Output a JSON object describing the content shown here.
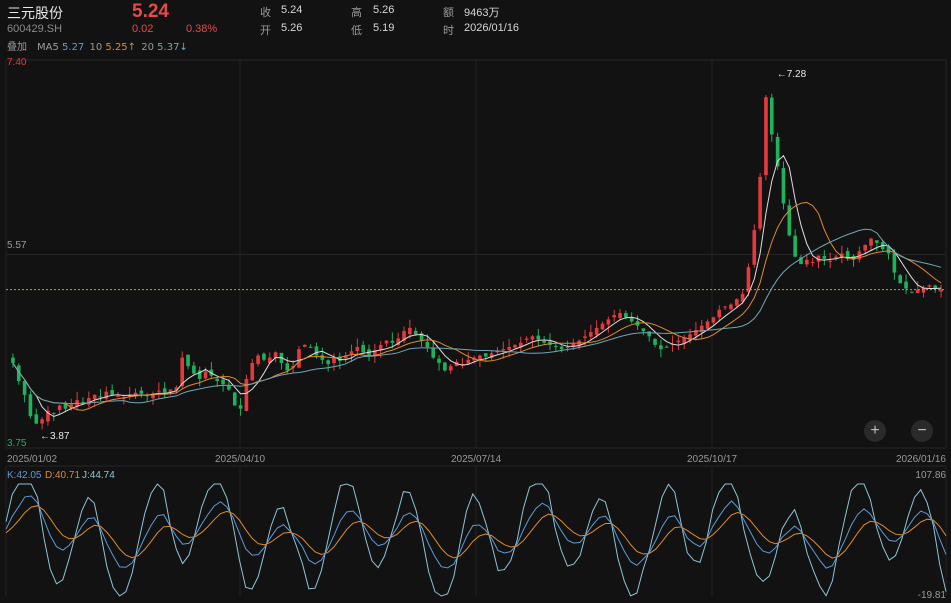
{
  "header": {
    "name": "三元股份",
    "code": "600429.SH",
    "price": "5.24",
    "change": "0.02",
    "change_pct": "0.38%",
    "close_label": "收",
    "close": "5.24",
    "open_label": "开",
    "open": "5.26",
    "high_label": "高",
    "high": "5.26",
    "low_label": "低",
    "low": "5.19",
    "amount_label": "额",
    "amount": "9463万",
    "time_label": "时",
    "time": "2026/01/16",
    "overlay_label": "叠加"
  },
  "ma": {
    "ma5_label": "MA5",
    "ma5": "5.27",
    "ma10_label": "10",
    "ma10": "5.25↑",
    "ma20_label": "20",
    "ma20": "5.37↓"
  },
  "colors": {
    "up": "#e5393d",
    "down": "#1fb25c",
    "ma5": "#dddddd",
    "ma10": "#e08a2c",
    "ma20": "#6fa6b5",
    "k": "#5d9bd8",
    "d": "#e08a2c",
    "j": "#8ec4d6"
  },
  "chart_data": [
    {
      "type": "candlestick",
      "ylim": [
        3.75,
        7.4
      ],
      "y_ticks": [
        "7.40",
        "5.57",
        "3.75"
      ],
      "x_ticks": [
        "2025/01/02",
        "2025/04/10",
        "2025/07/14",
        "2025/10/17",
        "2026/01/16"
      ],
      "last_close": 5.24,
      "annotations": [
        {
          "label": "←7.28",
          "kind": "max",
          "value": 7.28,
          "date_index": 0.82
        },
        {
          "label": "←3.87",
          "kind": "min",
          "value": 3.87,
          "date_index": 0.03
        }
      ],
      "series": [
        {
          "name": "MA5",
          "value": 5.27
        },
        {
          "name": "10",
          "value": 5.25
        },
        {
          "name": "20",
          "value": 5.37
        }
      ],
      "closes": [
        4.55,
        4.38,
        4.25,
        4.05,
        3.98,
        4.02,
        4.1,
        4.08,
        4.15,
        4.12,
        4.16,
        4.2,
        4.18,
        4.22,
        4.25,
        4.23,
        4.28,
        4.25,
        4.24,
        4.22,
        4.25,
        4.27,
        4.26,
        4.24,
        4.26,
        4.29,
        4.27,
        4.3,
        4.32,
        4.6,
        4.52,
        4.45,
        4.4,
        4.47,
        4.43,
        4.38,
        4.35,
        4.3,
        4.15,
        4.12,
        4.4,
        4.55,
        4.62,
        4.58,
        4.6,
        4.65,
        4.55,
        4.48,
        4.52,
        4.68,
        4.72,
        4.7,
        4.62,
        4.58,
        4.54,
        4.6,
        4.57,
        4.62,
        4.66,
        4.7,
        4.65,
        4.62,
        4.67,
        4.72,
        4.76,
        4.74,
        4.78,
        4.85,
        4.88,
        4.82,
        4.76,
        4.7,
        4.6,
        4.55,
        4.48,
        4.52,
        4.56,
        4.54,
        4.58,
        4.6,
        4.62,
        4.61,
        4.64,
        4.66,
        4.68,
        4.7,
        4.72,
        4.74,
        4.78,
        4.8,
        4.77,
        4.74,
        4.72,
        4.7,
        4.68,
        4.7,
        4.73,
        4.76,
        4.8,
        4.84,
        4.88,
        4.92,
        4.96,
        5.0,
        5.02,
        4.98,
        4.94,
        4.9,
        4.85,
        4.8,
        4.72,
        4.68,
        4.7,
        4.73,
        4.76,
        4.79,
        4.82,
        4.86,
        4.9,
        4.94,
        4.98,
        5.05,
        5.08,
        5.1,
        5.15,
        5.2,
        5.45,
        5.8,
        6.3,
        7.05,
        6.7,
        6.4,
        6.05,
        5.75,
        5.55,
        5.48,
        5.52,
        5.5,
        5.56,
        5.53,
        5.51,
        5.55,
        5.58,
        5.54,
        5.52,
        5.6,
        5.66,
        5.72,
        5.68,
        5.62,
        5.58,
        5.4,
        5.3,
        5.25,
        5.22,
        5.24,
        5.26,
        5.28,
        5.25,
        5.24
      ]
    },
    {
      "type": "line",
      "title": "KDJ",
      "ylim": [
        -19.81,
        107.86
      ],
      "y_ticks": [
        "107.86",
        "-19.81"
      ],
      "series": [
        {
          "name": "K",
          "value": 42.05
        },
        {
          "name": "D",
          "value": 40.71
        },
        {
          "name": "J",
          "value": 44.74
        }
      ]
    }
  ],
  "controls": {
    "zoom_in": "+",
    "zoom_out": "−"
  }
}
